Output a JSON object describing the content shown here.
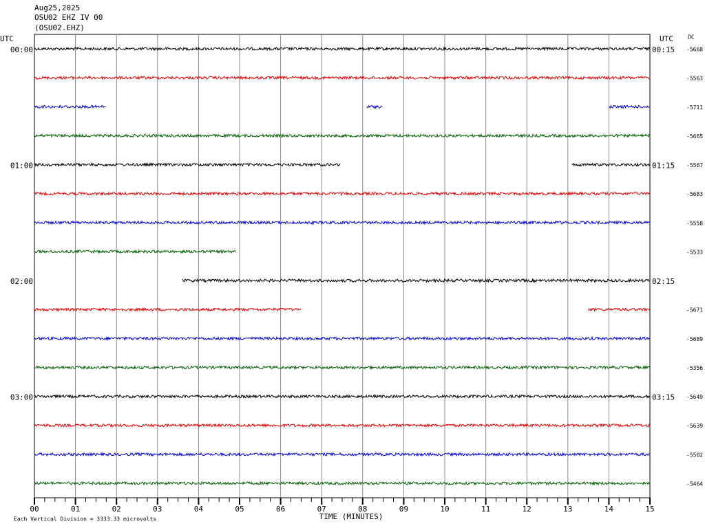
{
  "chart_data": {
    "type": "helicorder",
    "title": [
      "Aug25,2025",
      "OSU02 EHZ IV 00",
      "(OSU02.EHZ)"
    ],
    "left_axis_title": "UTC",
    "right_axis_title": "UTC",
    "dc_title": "DC",
    "xlabel": "TIME (MINUTES)",
    "footnote": "Each Vertical Division = 3333.33 microvolts",
    "xlim": [
      0,
      15
    ],
    "xticks": [
      {
        "value": 0,
        "label": "00"
      },
      {
        "value": 1,
        "label": "01"
      },
      {
        "value": 2,
        "label": "02"
      },
      {
        "value": 3,
        "label": "03"
      },
      {
        "value": 4,
        "label": "04"
      },
      {
        "value": 5,
        "label": "05"
      },
      {
        "value": 6,
        "label": "06"
      },
      {
        "value": 7,
        "label": "07"
      },
      {
        "value": 8,
        "label": "08"
      },
      {
        "value": 9,
        "label": "09"
      },
      {
        "value": 10,
        "label": "10"
      },
      {
        "value": 11,
        "label": "11"
      },
      {
        "value": 12,
        "label": "12"
      },
      {
        "value": 13,
        "label": "13"
      },
      {
        "value": 14,
        "label": "14"
      },
      {
        "value": 15,
        "label": "15"
      }
    ],
    "grid": true,
    "left_labels": [
      "00:00",
      null,
      null,
      null,
      "01:00",
      null,
      null,
      null,
      "02:00",
      null,
      null,
      null,
      "03:00",
      null,
      null,
      null
    ],
    "right_labels": [
      "00:15",
      null,
      null,
      null,
      "01:15",
      null,
      null,
      null,
      "02:15",
      null,
      null,
      null,
      "03:15",
      null,
      null,
      null
    ],
    "dc_values": [
      -5668,
      -5563,
      -5711,
      -5665,
      -5567,
      -5683,
      -5558,
      -5533,
      null,
      -5671,
      -5689,
      -5356,
      -5649,
      -5639,
      -5502,
      -5464
    ],
    "colors": [
      "#000000",
      "#e00000",
      "#0000d0",
      "#006000"
    ],
    "segments": [
      [
        [
          0,
          15
        ]
      ],
      [
        [
          0,
          15
        ]
      ],
      [
        [
          0,
          1.75
        ],
        [
          8.1,
          8.5
        ],
        [
          14,
          15
        ]
      ],
      [
        [
          0,
          15
        ]
      ],
      [
        [
          0,
          7.45
        ],
        [
          13.1,
          15
        ]
      ],
      [
        [
          0,
          15
        ]
      ],
      [
        [
          0,
          15
        ]
      ],
      [
        [
          0,
          4.9
        ]
      ],
      [
        [
          3.6,
          15
        ]
      ],
      [
        [
          0,
          6.5
        ],
        [
          13.5,
          15
        ]
      ],
      [
        [
          0,
          15
        ]
      ],
      [
        [
          0,
          15
        ]
      ],
      [
        [
          0,
          15
        ]
      ],
      [
        [
          0,
          15
        ]
      ],
      [
        [
          0,
          15
        ]
      ],
      [
        [
          0,
          15
        ]
      ]
    ]
  }
}
